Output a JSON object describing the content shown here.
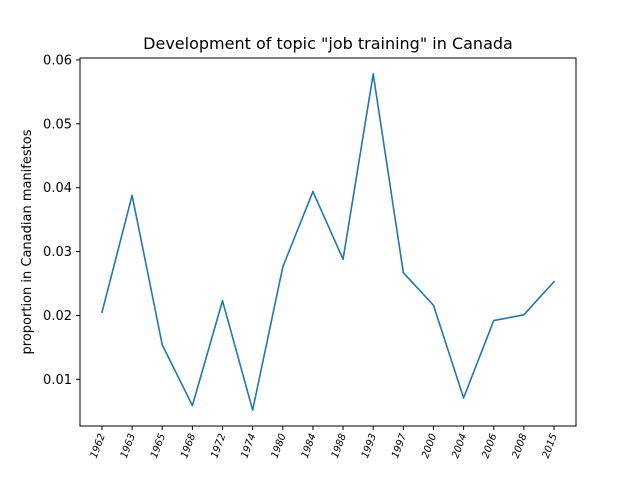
{
  "chart_data": {
    "type": "line",
    "title": "Development of topic \"job training\" in Canada",
    "xlabel": "",
    "ylabel": "proportion in Canadian manifestos",
    "categories": [
      "1962",
      "1963",
      "1965",
      "1968",
      "1972",
      "1974",
      "1980",
      "1984",
      "1988",
      "1993",
      "1997",
      "2000",
      "2004",
      "2006",
      "2008",
      "2015"
    ],
    "series": [
      {
        "values": [
          0.0205,
          0.0388,
          0.0154,
          0.0059,
          0.0223,
          0.0052,
          0.0276,
          0.0394,
          0.0288,
          0.0578,
          0.0267,
          0.0216,
          0.0071,
          0.0192,
          0.0201,
          0.0253
        ],
        "color": "#1f77b4"
      }
    ],
    "ylim": [
      0.0027,
      0.0603
    ],
    "yticks": [
      0.01,
      0.02,
      0.03,
      0.04,
      0.05,
      0.06
    ],
    "ytick_labels": [
      "0.01",
      "0.02",
      "0.03",
      "0.04",
      "0.05",
      "0.06"
    ],
    "grid": false,
    "legend": "none"
  }
}
